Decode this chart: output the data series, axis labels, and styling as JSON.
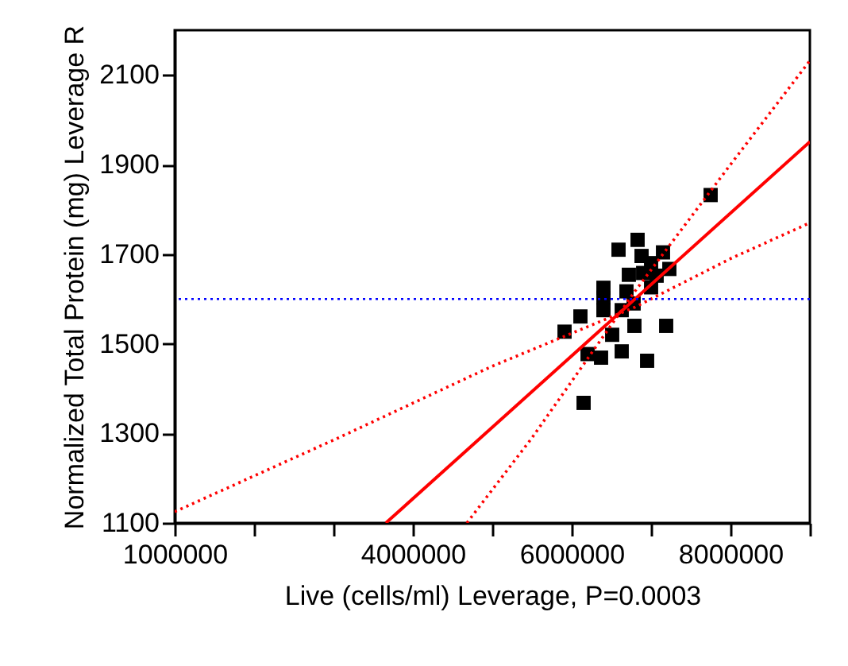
{
  "chart_data": {
    "type": "scatter",
    "xlabel": "Live (cells/ml) Leverage, P=0.0003",
    "ylabel": "Normalized Total Protein (mg) Leverage R",
    "xlim": [
      1000000,
      9000000
    ],
    "xticks": [
      1000000,
      {
        "value": 2000000,
        "label": null
      },
      {
        "value": 3000000,
        "label": null
      },
      4000000,
      {
        "value": 5000000,
        "label": null
      },
      6000000,
      {
        "value": 7000000,
        "label": null
      },
      8000000,
      {
        "value": 9000000,
        "label": null
      }
    ],
    "ylim": [
      1100,
      2200
    ],
    "yticks": [
      1100,
      1300,
      1500,
      1700,
      1900,
      2100
    ],
    "grid": false,
    "ref_lines": [
      {
        "axis": "y",
        "value": 1600,
        "color": "#0000ff",
        "line_style": "dotted"
      }
    ],
    "series": [
      {
        "color": "#000000",
        "marker": "square",
        "x": [
          7750000,
          6830000,
          6590000,
          6880000,
          7150000,
          7000000,
          7230000,
          6720000,
          6900000,
          7070000,
          6400000,
          6400000,
          6690000,
          7000000,
          6400000,
          6630000,
          6780000,
          6110000,
          5910000,
          6790000,
          7190000,
          6510000,
          6630000,
          6200000,
          6370000,
          6950000,
          6150000
        ],
        "values": [
          1832,
          1732,
          1710,
          1696,
          1704,
          1680,
          1667,
          1654,
          1658,
          1652,
          1625,
          1603,
          1617,
          1626,
          1575,
          1575,
          1590,
          1561,
          1527,
          1540,
          1540,
          1520,
          1483,
          1477,
          1469,
          1462,
          1368
        ]
      },
      {
        "type": "line",
        "color": "#ff0000",
        "line_style": "solid",
        "marker": "none",
        "x": [
          3660000,
          9000000
        ],
        "values": [
          1100,
          1951
        ]
      },
      {
        "type": "line",
        "color": "#ff0000",
        "line_style": "dotted",
        "marker": "none",
        "x": [
          4680000,
          5500000,
          6800000,
          8000000,
          9000000
        ],
        "values": [
          1100,
          1290,
          1618,
          1900,
          2132
        ]
      },
      {
        "type": "line",
        "color": "#ff0000",
        "line_style": "dotted",
        "marker": "none",
        "x": [
          1000000,
          3000000,
          5000000,
          6800000,
          8000000,
          9000000
        ],
        "values": [
          1125,
          1285,
          1450,
          1582,
          1690,
          1770
        ]
      }
    ]
  }
}
